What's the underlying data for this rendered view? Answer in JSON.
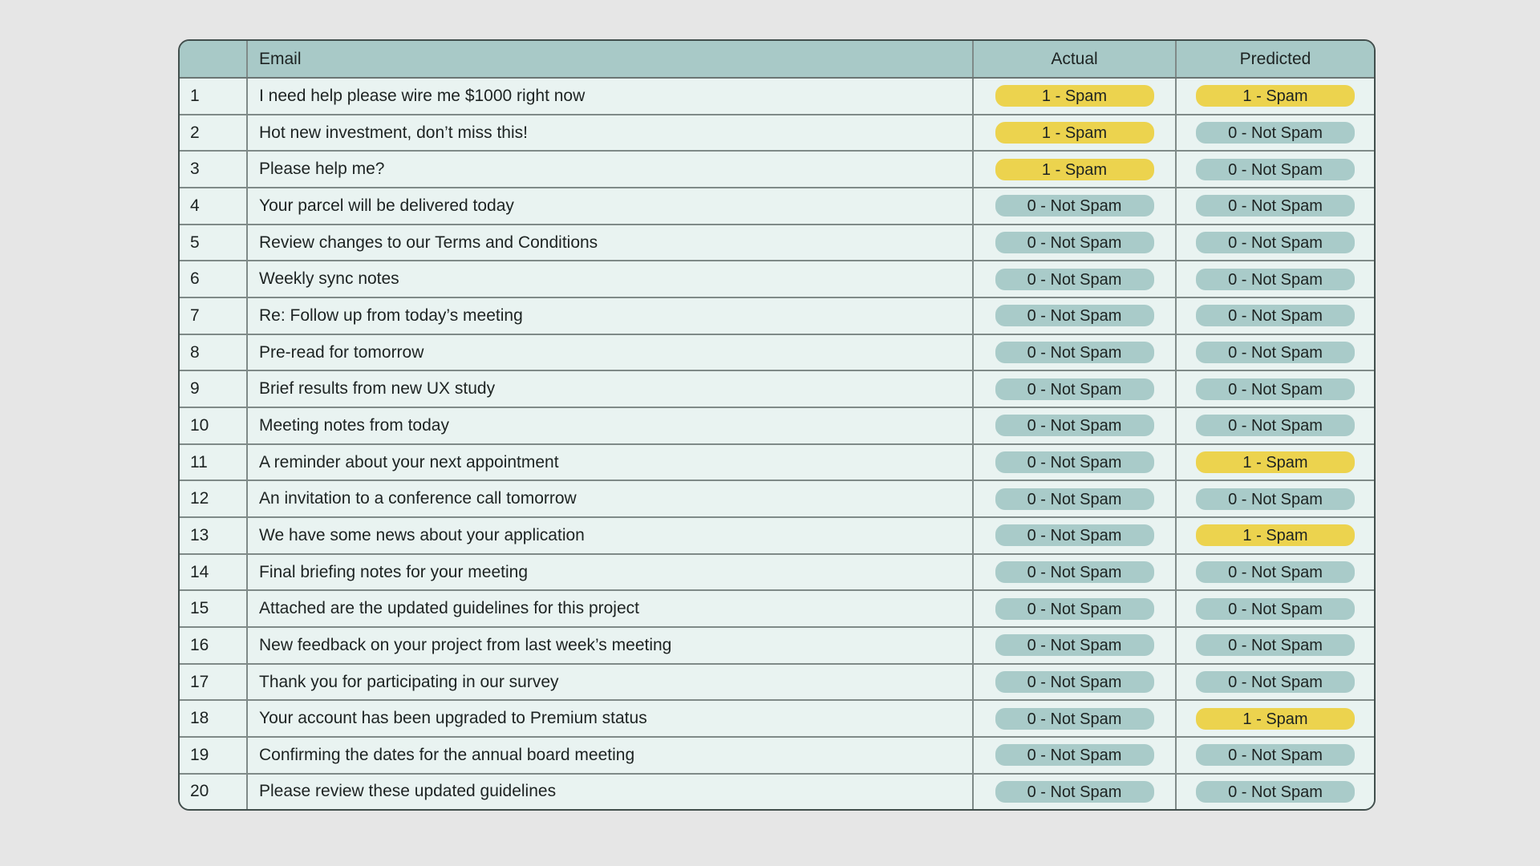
{
  "labels": {
    "spam": "1 - Spam",
    "not_spam": "0 - Not Spam"
  },
  "colors": {
    "page_background": "#e6e6e6",
    "header_background": "#a8c9c7",
    "row_background": "#e9f3f1",
    "spam_badge": "#ecd34e",
    "not_spam_badge": "#a9cbc9",
    "inner_border": "#7f8a88",
    "outer_border": "#414e4c",
    "text": "#1d2322"
  },
  "chart_data": {
    "type": "table",
    "title": "",
    "columns": [
      "",
      "Email",
      "Actual",
      "Predicted"
    ],
    "rows": [
      {
        "num": "1",
        "email": "I need help please wire me $1000 right now",
        "actual": "1 - Spam",
        "predicted": "1 - Spam"
      },
      {
        "num": "2",
        "email": "Hot new investment, don’t miss this!",
        "actual": "1 - Spam",
        "predicted": "0 - Not Spam"
      },
      {
        "num": "3",
        "email": "Please help me?",
        "actual": "1 - Spam",
        "predicted": "0 - Not Spam"
      },
      {
        "num": "4",
        "email": "Your parcel will be delivered today",
        "actual": "0 - Not Spam",
        "predicted": "0 - Not Spam"
      },
      {
        "num": "5",
        "email": "Review changes to our Terms and Conditions",
        "actual": "0 - Not Spam",
        "predicted": "0 - Not Spam"
      },
      {
        "num": "6",
        "email": "Weekly sync notes",
        "actual": "0 - Not Spam",
        "predicted": "0 - Not Spam"
      },
      {
        "num": "7",
        "email": "Re: Follow up from today’s meeting",
        "actual": "0 - Not Spam",
        "predicted": "0 - Not Spam"
      },
      {
        "num": "8",
        "email": "Pre-read for tomorrow",
        "actual": "0 - Not Spam",
        "predicted": "0 - Not Spam"
      },
      {
        "num": "9",
        "email": "Brief results from new UX study",
        "actual": "0 - Not Spam",
        "predicted": "0 - Not Spam"
      },
      {
        "num": "10",
        "email": "Meeting notes from today",
        "actual": "0 - Not Spam",
        "predicted": "0 - Not Spam"
      },
      {
        "num": "11",
        "email": "A reminder about your next appointment",
        "actual": "0 - Not Spam",
        "predicted": "1 - Spam"
      },
      {
        "num": "12",
        "email": "An invitation to a conference call tomorrow",
        "actual": "0 - Not Spam",
        "predicted": "0 - Not Spam"
      },
      {
        "num": "13",
        "email": "We have some news about your application",
        "actual": "0 - Not Spam",
        "predicted": "1 - Spam"
      },
      {
        "num": "14",
        "email": "Final briefing notes for your meeting",
        "actual": "0 - Not Spam",
        "predicted": "0 - Not Spam"
      },
      {
        "num": "15",
        "email": "Attached are the updated guidelines for this project",
        "actual": "0 - Not Spam",
        "predicted": "0 - Not Spam"
      },
      {
        "num": "16",
        "email": "New feedback on your project from last week’s meeting",
        "actual": "0 - Not Spam",
        "predicted": "0 - Not Spam"
      },
      {
        "num": "17",
        "email": "Thank you for participating in our survey",
        "actual": "0 - Not Spam",
        "predicted": "0 - Not Spam"
      },
      {
        "num": "18",
        "email": "Your account has been upgraded to Premium status",
        "actual": "0 - Not Spam",
        "predicted": "1 - Spam"
      },
      {
        "num": "19",
        "email": "Confirming the dates for the annual board meeting",
        "actual": "0 - Not Spam",
        "predicted": "0 - Not Spam"
      },
      {
        "num": "20",
        "email": "Please review these updated guidelines",
        "actual": "0 - Not Spam",
        "predicted": "0 - Not Spam"
      }
    ]
  }
}
